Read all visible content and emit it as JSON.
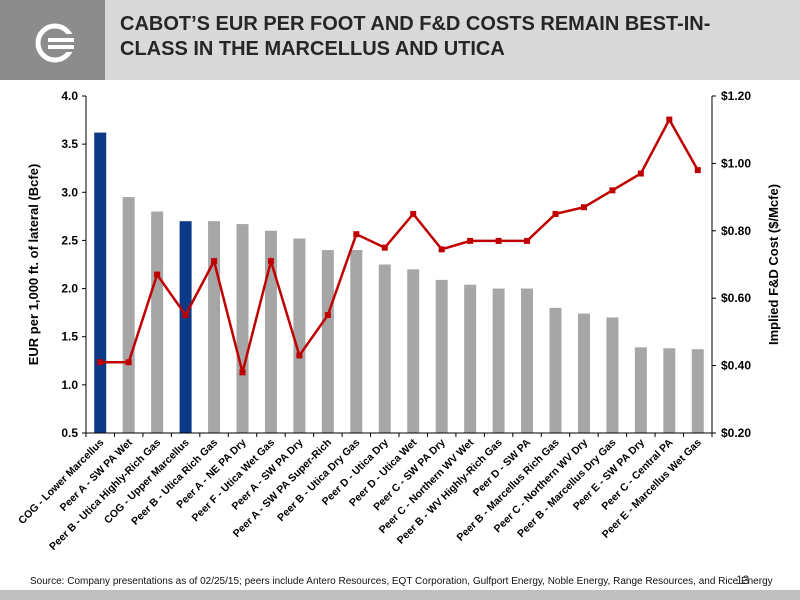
{
  "header": {
    "title_line1": "CABOT’S EUR PER FOOT AND F&D COSTS REMAIN BEST-IN-",
    "title_line2": "CLASS IN THE MARCELLUS AND UTICA"
  },
  "colors": {
    "highlight_bar": "#0b3a86",
    "peer_bar": "#a6a6a6",
    "line": "#c00000",
    "header_bg": "#d9d9d9",
    "logo_bg": "#8c8c8c"
  },
  "logo": {
    "icon": "cabot-logo-icon"
  },
  "chart_data": {
    "type": "bar",
    "combo_line": true,
    "categories": [
      "COG - Lower Marcellus",
      "Peer A - SW PA Wet",
      "Peer B - Utica Highly-Rich Gas",
      "COG - Upper Marcellus",
      "Peer B - Utica Rich Gas",
      "Peer A - NE PA Dry",
      "Peer F - Utica Wet Gas",
      "Peer A - SW PA Dry",
      "Peer A - SW PA Super-Rich",
      "Peer B - Utica Dry Gas",
      "Peer D - Utica Dry",
      "Peer D - Utica Wet",
      "Peer C - SW PA Dry",
      "Peer C - Northern WV Wet",
      "Peer B - WV Highly-Rich Gas",
      "Peer D - SW PA",
      "Peer B - Marcellus Rich Gas",
      "Peer C - Northern WV Dry",
      "Peer B - Marcellus Dry Gas",
      "Peer E - SW PA Dry",
      "Peer C - Central PA",
      "Peer E - Marcellus Wet Gas"
    ],
    "series": [
      {
        "axis": "left",
        "type": "bar",
        "values": [
          3.62,
          2.95,
          2.8,
          2.7,
          2.7,
          2.67,
          2.6,
          2.52,
          2.4,
          2.4,
          2.25,
          2.2,
          2.09,
          2.04,
          2.0,
          2.0,
          1.8,
          1.74,
          1.7,
          1.39,
          1.38,
          1.37
        ],
        "highlight": [
          0,
          3
        ]
      },
      {
        "axis": "right",
        "type": "line",
        "values": [
          0.41,
          0.41,
          0.67,
          0.55,
          0.71,
          0.38,
          0.71,
          0.43,
          0.55,
          0.79,
          0.75,
          0.85,
          0.745,
          0.77,
          0.77,
          0.77,
          0.85,
          0.87,
          0.92,
          0.97,
          1.13,
          0.98
        ]
      }
    ],
    "ylabel_left": "EUR per 1,000 ft. of lateral (Bcfe)",
    "ylabel_right": "Implied F&D Cost ($/Mcfe)",
    "ylim_left": [
      0.5,
      4.0
    ],
    "yticks_left": [
      "0.5",
      "1.0",
      "1.5",
      "2.0",
      "2.5",
      "3.0",
      "3.5",
      "4.0"
    ],
    "ylim_right": [
      0.2,
      1.2
    ],
    "yticks_right": [
      "$0.20",
      "$0.40",
      "$0.60",
      "$0.80",
      "$1.00",
      "$1.20"
    ],
    "grid": false,
    "legend": "none"
  },
  "footer": {
    "source": "Source: Company presentations as of 02/25/15; peers include Antero Resources, EQT Corporation, Gulfport Energy, Noble Energy,  Range Resources, and Rice Energy",
    "page_number": "13"
  }
}
